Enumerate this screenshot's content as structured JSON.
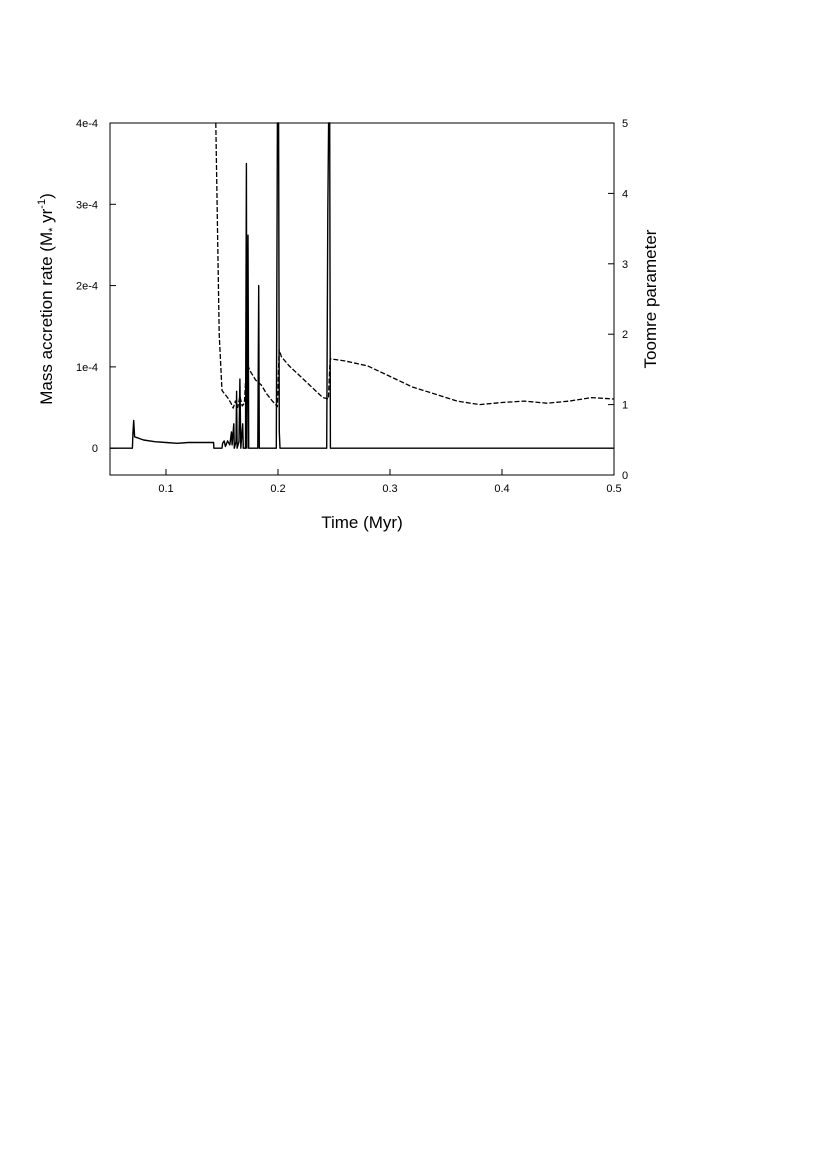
{
  "chart_data": {
    "type": "line",
    "title": "",
    "xlabel": "Time (Myr)",
    "ylabel": "Mass accretion rate (M⊙ yr⁻¹)",
    "ylabel_parts": {
      "main": "Mass accretion rate (M",
      "sub": "*",
      "mid": " yr",
      "sup": "-1",
      "end": ")"
    },
    "y2label": "Toomre parameter",
    "xlim": [
      0.05,
      0.5
    ],
    "ylim": [
      -3.3e-05,
      0.0004
    ],
    "y2lim": [
      0,
      5
    ],
    "x_ticks": [
      "0.1",
      "0.2",
      "0.3",
      "0.4",
      "0.5"
    ],
    "y_ticks": [
      "0",
      "1e-4",
      "2e-4",
      "3e-4",
      "4e-4"
    ],
    "y2_ticks": [
      "0",
      "1",
      "2",
      "3",
      "4",
      "5"
    ],
    "grid": false,
    "legend": "none",
    "series": [
      {
        "axis": "left",
        "style": "solid",
        "points": [
          [
            0.05,
            0.0
          ],
          [
            0.07,
            0.0
          ],
          [
            0.0705,
            2e-05
          ],
          [
            0.0712,
            3.4e-05
          ],
          [
            0.072,
            1.4e-05
          ],
          [
            0.08,
            1e-05
          ],
          [
            0.09,
            8e-06
          ],
          [
            0.1,
            7e-06
          ],
          [
            0.11,
            6e-06
          ],
          [
            0.12,
            7e-06
          ],
          [
            0.13,
            7e-06
          ],
          [
            0.1425,
            7e-06
          ],
          [
            0.1428,
            0.0
          ],
          [
            0.15,
            0.0
          ],
          [
            0.1505,
            6e-06
          ],
          [
            0.152,
            9e-06
          ],
          [
            0.153,
            2e-06
          ],
          [
            0.155,
            9e-06
          ],
          [
            0.157,
            4e-06
          ],
          [
            0.1585,
            2e-05
          ],
          [
            0.159,
            4e-06
          ],
          [
            0.1605,
            3e-05
          ],
          [
            0.161,
            0.0
          ],
          [
            0.1625,
            8e-06
          ],
          [
            0.163,
            7e-05
          ],
          [
            0.1635,
            0.0
          ],
          [
            0.1652,
            8e-06
          ],
          [
            0.166,
            8.5e-05
          ],
          [
            0.1668,
            0.0
          ],
          [
            0.1685,
            3e-05
          ],
          [
            0.169,
            0.0
          ],
          [
            0.171,
            0.0
          ],
          [
            0.1718,
            0.00035
          ],
          [
            0.1722,
            0.0
          ],
          [
            0.1732,
            0.000262
          ],
          [
            0.1738,
            0.0
          ],
          [
            0.182,
            0.0
          ],
          [
            0.1828,
            0.0002
          ],
          [
            0.1833,
            0.0
          ],
          [
            0.1985,
            0.0
          ],
          [
            0.1995,
            0.0004
          ],
          [
            0.2005,
            0.0004
          ],
          [
            0.2012,
            2e-05
          ],
          [
            0.2018,
            0.0
          ],
          [
            0.2435,
            0.0
          ],
          [
            0.2445,
            0.00029
          ],
          [
            0.2452,
            0.0004
          ],
          [
            0.2462,
            0.0004
          ],
          [
            0.2468,
            0.0
          ],
          [
            0.5,
            0.0
          ]
        ]
      },
      {
        "axis": "right",
        "style": "dashed",
        "points": [
          [
            0.1445,
            5.0
          ],
          [
            0.146,
            3.5
          ],
          [
            0.1475,
            2.0
          ],
          [
            0.15,
            1.2
          ],
          [
            0.155,
            1.1
          ],
          [
            0.158,
            1.02
          ],
          [
            0.16,
            0.95
          ],
          [
            0.162,
            1.05
          ],
          [
            0.164,
            0.96
          ],
          [
            0.166,
            1.12
          ],
          [
            0.168,
            0.98
          ],
          [
            0.17,
            1.02
          ],
          [
            0.172,
            1.6
          ],
          [
            0.175,
            1.48
          ],
          [
            0.18,
            1.35
          ],
          [
            0.185,
            1.28
          ],
          [
            0.19,
            1.15
          ],
          [
            0.195,
            1.05
          ],
          [
            0.1995,
            0.97
          ],
          [
            0.201,
            1.78
          ],
          [
            0.203,
            1.68
          ],
          [
            0.21,
            1.55
          ],
          [
            0.22,
            1.4
          ],
          [
            0.23,
            1.25
          ],
          [
            0.24,
            1.1
          ],
          [
            0.245,
            1.08
          ],
          [
            0.2465,
            1.65
          ],
          [
            0.26,
            1.62
          ],
          [
            0.28,
            1.55
          ],
          [
            0.3,
            1.4
          ],
          [
            0.32,
            1.25
          ],
          [
            0.34,
            1.15
          ],
          [
            0.36,
            1.05
          ],
          [
            0.38,
            1.0
          ],
          [
            0.4,
            1.03
          ],
          [
            0.42,
            1.05
          ],
          [
            0.44,
            1.02
          ],
          [
            0.46,
            1.05
          ],
          [
            0.48,
            1.1
          ],
          [
            0.5,
            1.08
          ]
        ]
      }
    ]
  }
}
